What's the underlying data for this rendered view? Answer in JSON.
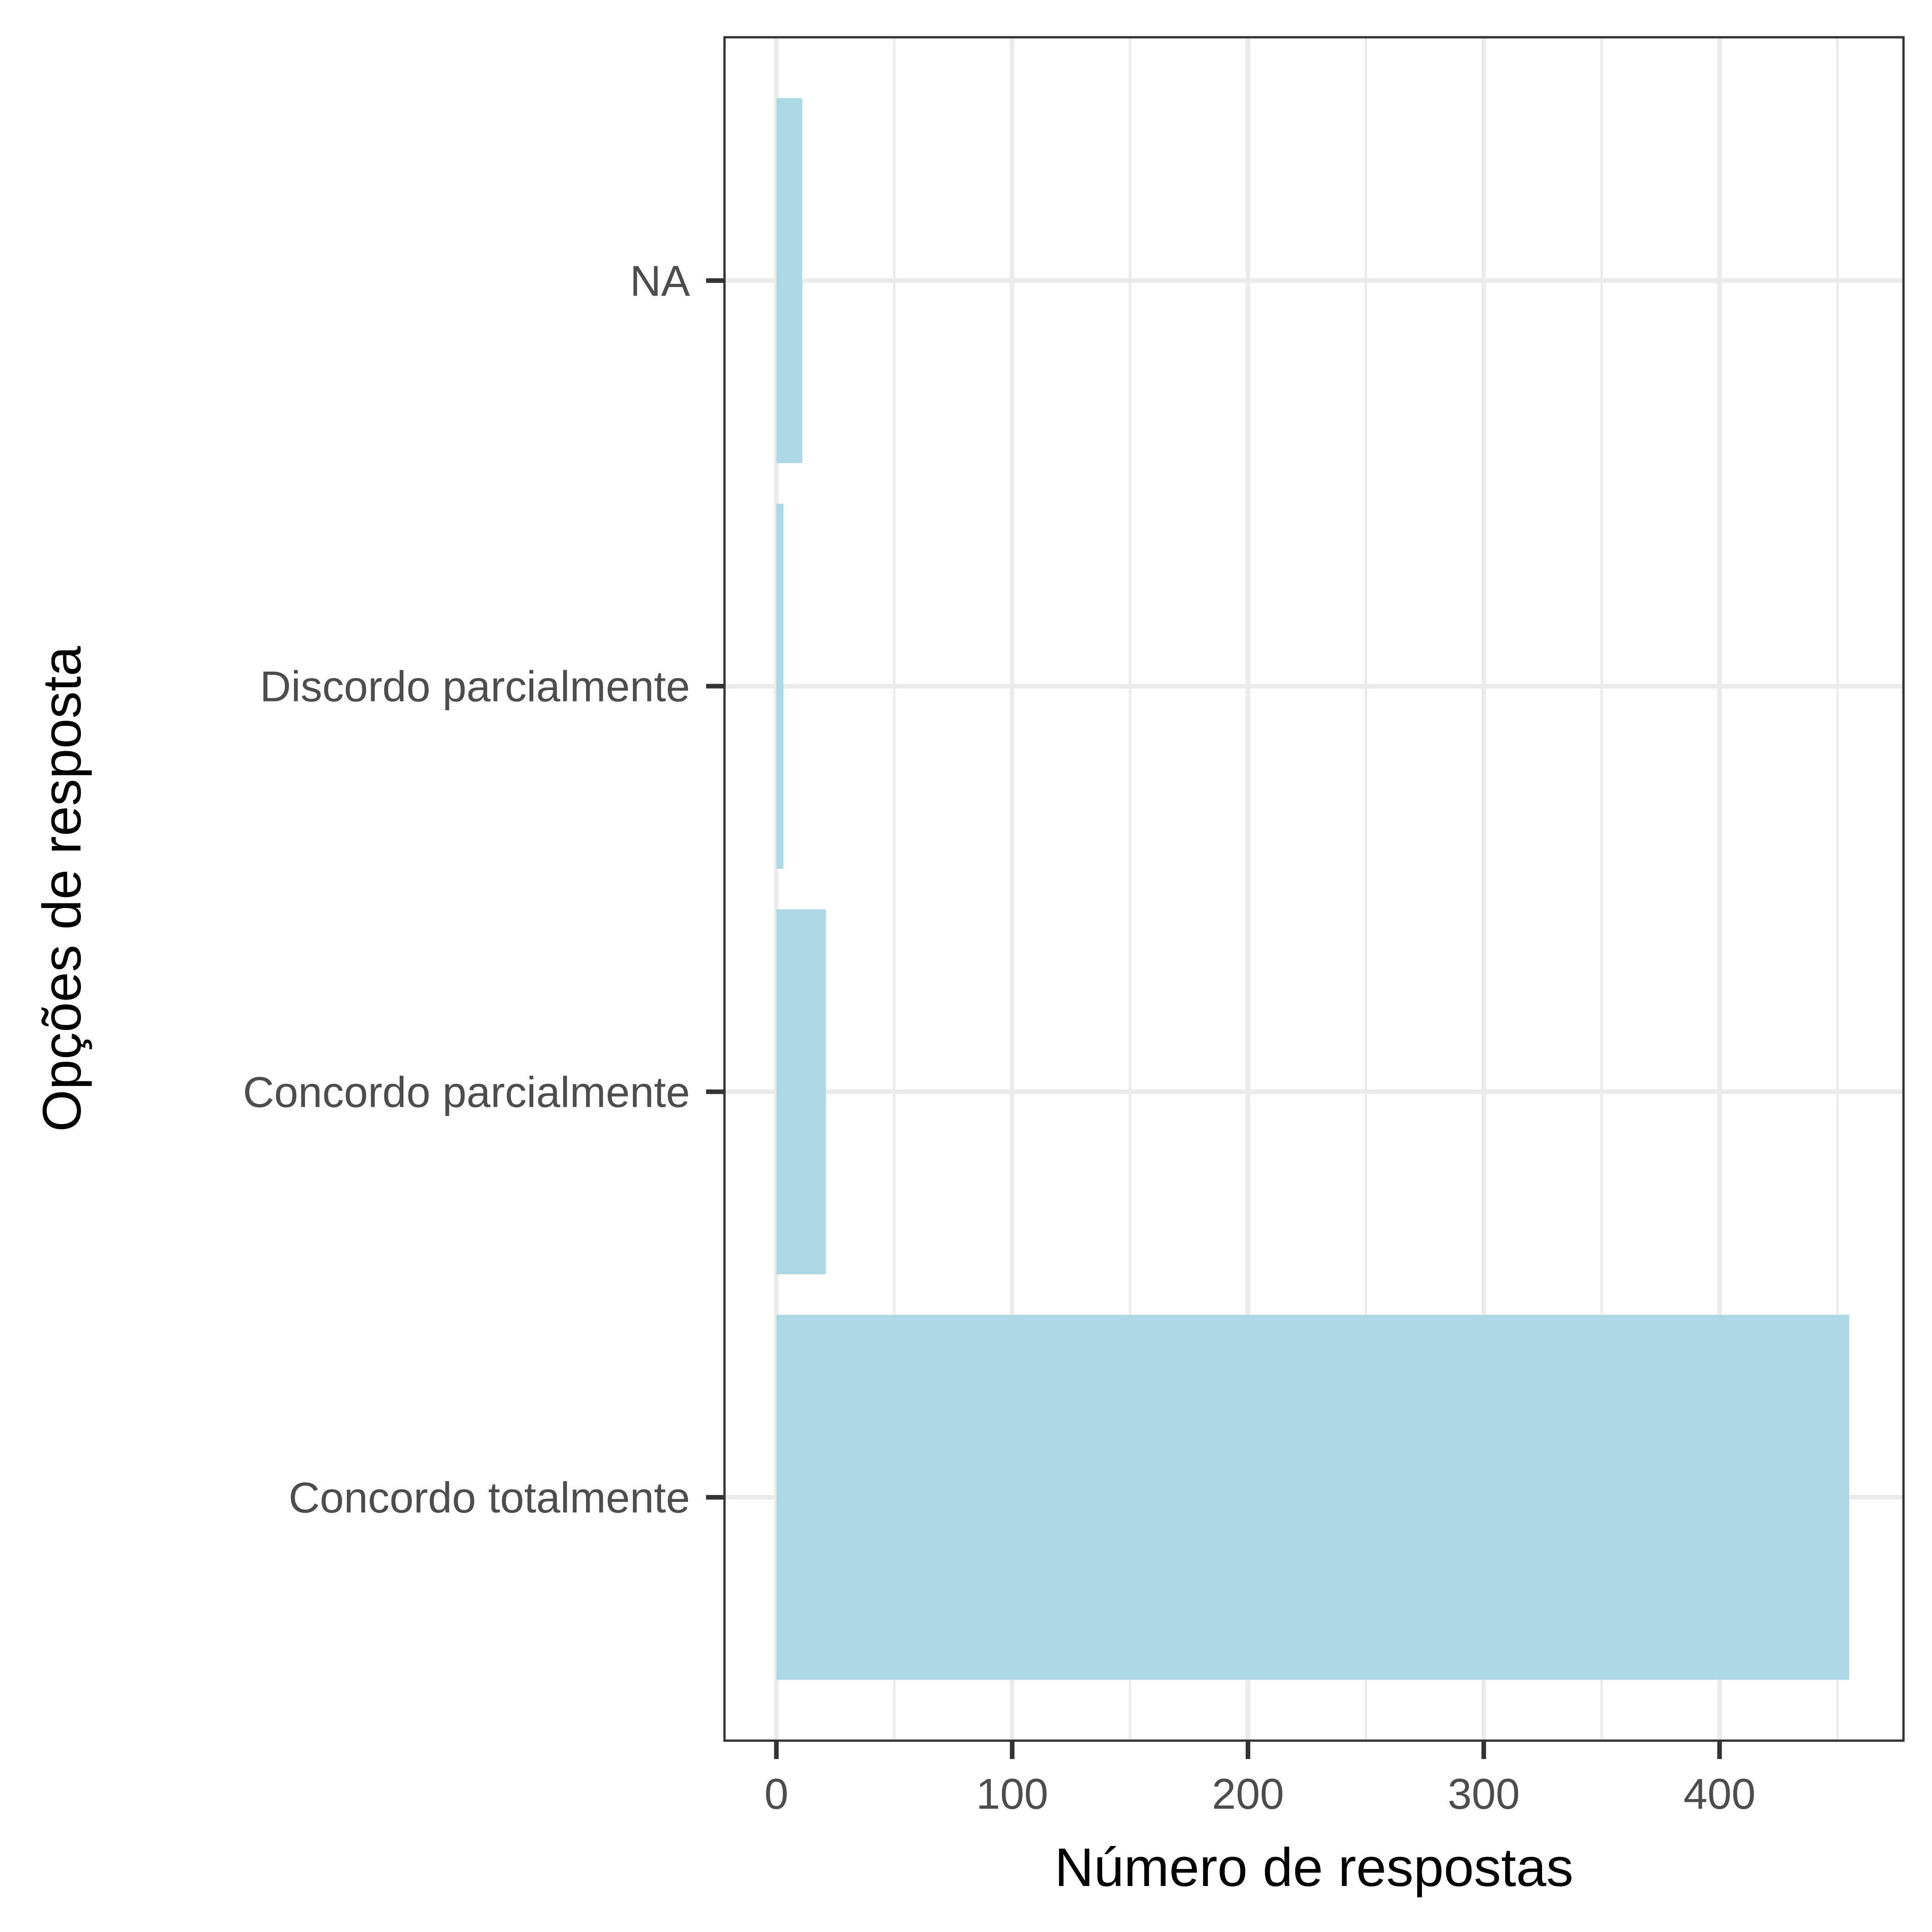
{
  "chart_data": {
    "type": "bar",
    "orientation": "horizontal",
    "title": "",
    "xlabel": "Número de respostas",
    "ylabel": "Opções de resposta",
    "categories": [
      "Concordo totalmente",
      "Concordo parcialmente",
      "Discordo parcialmente",
      "NA"
    ],
    "values": [
      455,
      21,
      3,
      11
    ],
    "xlim": [
      -22,
      478
    ],
    "x_ticks": [
      0,
      100,
      200,
      300,
      400
    ],
    "grid": true,
    "legend": "none",
    "colors": {
      "bar": "#add8e6",
      "grid": "#ebebeb",
      "axis": "#333333",
      "tick_label": "#4d4d4d",
      "axis_title": "#000000",
      "background": "#ffffff"
    }
  }
}
